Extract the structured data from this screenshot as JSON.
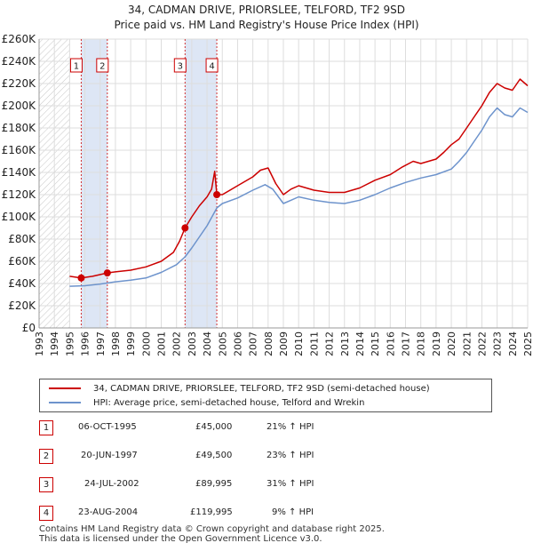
{
  "title_line1": "34, CADMAN DRIVE, PRIORSLEE, TELFORD, TF2 9SD",
  "title_line2": "Price paid vs. HM Land Registry's House Price Index (HPI)",
  "chart_data": {
    "type": "line",
    "x_range": [
      1993,
      2025
    ],
    "y_range": [
      0,
      260000
    ],
    "y_tick_values": [
      0,
      20000,
      40000,
      60000,
      80000,
      100000,
      120000,
      140000,
      160000,
      180000,
      200000,
      220000,
      240000,
      260000
    ],
    "y_tick_labels": [
      "£0",
      "£20K",
      "£40K",
      "£60K",
      "£80K",
      "£100K",
      "£120K",
      "£140K",
      "£160K",
      "£180K",
      "£200K",
      "£220K",
      "£240K",
      "£260K"
    ],
    "x_tick_labels": [
      "1993",
      "1994",
      "1995",
      "1996",
      "1997",
      "1998",
      "1999",
      "2000",
      "2001",
      "2002",
      "2003",
      "2004",
      "2005",
      "2006",
      "2007",
      "2008",
      "2009",
      "2010",
      "2011",
      "2012",
      "2013",
      "2014",
      "2015",
      "2016",
      "2017",
      "2018",
      "2019",
      "2020",
      "2021",
      "2022",
      "2023",
      "2024",
      "2025"
    ],
    "hatched_until": 1995.0,
    "shaded_periods": [
      [
        1995.76,
        1997.47
      ],
      [
        2002.56,
        2004.64
      ]
    ],
    "series": [
      {
        "name": "34, CADMAN DRIVE, PRIORSLEE, TELFORD, TF2 9SD (semi-detached house)",
        "color": "#cc0000",
        "points": [
          [
            1995.0,
            46500
          ],
          [
            1995.76,
            45000
          ],
          [
            1996.5,
            46500
          ],
          [
            1997.47,
            49500
          ],
          [
            1998.0,
            50500
          ],
          [
            1999.0,
            52000
          ],
          [
            2000.0,
            55000
          ],
          [
            2001.0,
            60000
          ],
          [
            2001.8,
            68000
          ],
          [
            2002.2,
            78000
          ],
          [
            2002.56,
            89995
          ],
          [
            2003.0,
            100000
          ],
          [
            2003.5,
            110000
          ],
          [
            2004.0,
            118000
          ],
          [
            2004.3,
            125000
          ],
          [
            2004.5,
            141000
          ],
          [
            2004.64,
            119995
          ],
          [
            2005.0,
            120000
          ],
          [
            2006.0,
            128000
          ],
          [
            2007.0,
            136000
          ],
          [
            2007.5,
            142000
          ],
          [
            2008.0,
            144000
          ],
          [
            2008.5,
            130000
          ],
          [
            2009.0,
            120000
          ],
          [
            2009.5,
            125000
          ],
          [
            2010.0,
            128000
          ],
          [
            2011.0,
            124000
          ],
          [
            2012.0,
            122000
          ],
          [
            2013.0,
            122000
          ],
          [
            2014.0,
            126000
          ],
          [
            2015.0,
            133000
          ],
          [
            2016.0,
            138000
          ],
          [
            2016.8,
            145000
          ],
          [
            2017.5,
            150000
          ],
          [
            2018.0,
            148000
          ],
          [
            2019.0,
            152000
          ],
          [
            2019.5,
            158000
          ],
          [
            2020.0,
            165000
          ],
          [
            2020.5,
            170000
          ],
          [
            2021.0,
            180000
          ],
          [
            2021.5,
            190000
          ],
          [
            2022.0,
            200000
          ],
          [
            2022.5,
            212000
          ],
          [
            2023.0,
            220000
          ],
          [
            2023.5,
            216000
          ],
          [
            2024.0,
            214000
          ],
          [
            2024.5,
            224000
          ],
          [
            2025.0,
            218000
          ]
        ]
      },
      {
        "name": "HPI: Average price, semi-detached house, Telford and Wrekin",
        "color": "#6d93cc",
        "points": [
          [
            1995.0,
            37500
          ],
          [
            1996.0,
            38000
          ],
          [
            1997.0,
            39500
          ],
          [
            1998.0,
            41500
          ],
          [
            1999.0,
            43000
          ],
          [
            2000.0,
            45000
          ],
          [
            2001.0,
            50000
          ],
          [
            2002.0,
            57000
          ],
          [
            2002.56,
            64000
          ],
          [
            2003.0,
            72000
          ],
          [
            2003.5,
            82000
          ],
          [
            2004.0,
            92000
          ],
          [
            2004.64,
            108000
          ],
          [
            2005.0,
            112000
          ],
          [
            2006.0,
            117000
          ],
          [
            2007.0,
            124000
          ],
          [
            2007.8,
            129000
          ],
          [
            2008.3,
            125000
          ],
          [
            2009.0,
            112000
          ],
          [
            2009.5,
            115000
          ],
          [
            2010.0,
            118000
          ],
          [
            2011.0,
            115000
          ],
          [
            2012.0,
            113000
          ],
          [
            2013.0,
            112000
          ],
          [
            2014.0,
            115000
          ],
          [
            2015.0,
            120000
          ],
          [
            2016.0,
            126000
          ],
          [
            2017.0,
            131000
          ],
          [
            2018.0,
            135000
          ],
          [
            2019.0,
            138000
          ],
          [
            2020.0,
            143000
          ],
          [
            2020.5,
            150000
          ],
          [
            2021.0,
            158000
          ],
          [
            2021.5,
            168000
          ],
          [
            2022.0,
            178000
          ],
          [
            2022.5,
            190000
          ],
          [
            2023.0,
            198000
          ],
          [
            2023.5,
            192000
          ],
          [
            2024.0,
            190000
          ],
          [
            2024.5,
            198000
          ],
          [
            2025.0,
            194000
          ]
        ]
      }
    ],
    "sales": [
      {
        "n": "1",
        "x": 1995.76,
        "y": 45000
      },
      {
        "n": "2",
        "x": 1997.47,
        "y": 49500
      },
      {
        "n": "3",
        "x": 2002.56,
        "y": 89995
      },
      {
        "n": "4",
        "x": 2004.64,
        "y": 119995
      }
    ]
  },
  "legend": {
    "property": "34, CADMAN DRIVE, PRIORSLEE, TELFORD, TF2 9SD (semi-detached house)",
    "hpi": "HPI: Average price, semi-detached house, Telford and Wrekin",
    "property_color": "#cc0000",
    "hpi_color": "#6d93cc"
  },
  "transactions": [
    {
      "n": "1",
      "date": "06-OCT-1995",
      "price": "£45,000",
      "hpi": "21% ↑ HPI"
    },
    {
      "n": "2",
      "date": "20-JUN-1997",
      "price": "£49,500",
      "hpi": "23% ↑ HPI"
    },
    {
      "n": "3",
      "date": "24-JUL-2002",
      "price": "£89,995",
      "hpi": "31% ↑ HPI"
    },
    {
      "n": "4",
      "date": "23-AUG-2004",
      "price": "£119,995",
      "hpi": "9% ↑ HPI"
    }
  ],
  "footer_line1": "Contains HM Land Registry data © Crown copyright and database right 2025.",
  "footer_line2": "This data is licensed under the Open Government Licence v3.0."
}
